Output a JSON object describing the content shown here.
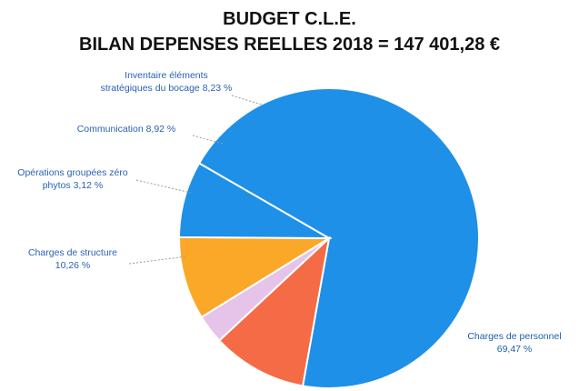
{
  "chart_data": {
    "type": "pie",
    "title": "BUDGET C.L.E.",
    "subtitle": "BILAN DEPENSES REELLES 2018 = 147 401,28 €",
    "slices": [
      {
        "label_lines": [
          "Charges de personnel",
          "69,47 %"
        ],
        "value": 69.47,
        "color": "#1e90e8",
        "label_color": "#1f5fa8"
      },
      {
        "label_lines": [
          "Charges de structure",
          "10,26 %"
        ],
        "value": 10.26,
        "color": "#f46b45",
        "label_color": "#2a63b0"
      },
      {
        "label_lines": [
          "Opérations groupées zéro",
          "phytos 3,12 %"
        ],
        "value": 3.12,
        "color": "#e6c3e8",
        "label_color": "#2a63b0"
      },
      {
        "label_lines": [
          "Communication 8,92 %"
        ],
        "value": 8.92,
        "color": "#fba728",
        "label_color": "#2a63b0"
      },
      {
        "label_lines": [
          "Inventaire éléments",
          "stratégiques du bocage 8,23 %"
        ],
        "value": 8.23,
        "color": "#1e90e8",
        "label_color": "#2a63b0"
      }
    ]
  }
}
